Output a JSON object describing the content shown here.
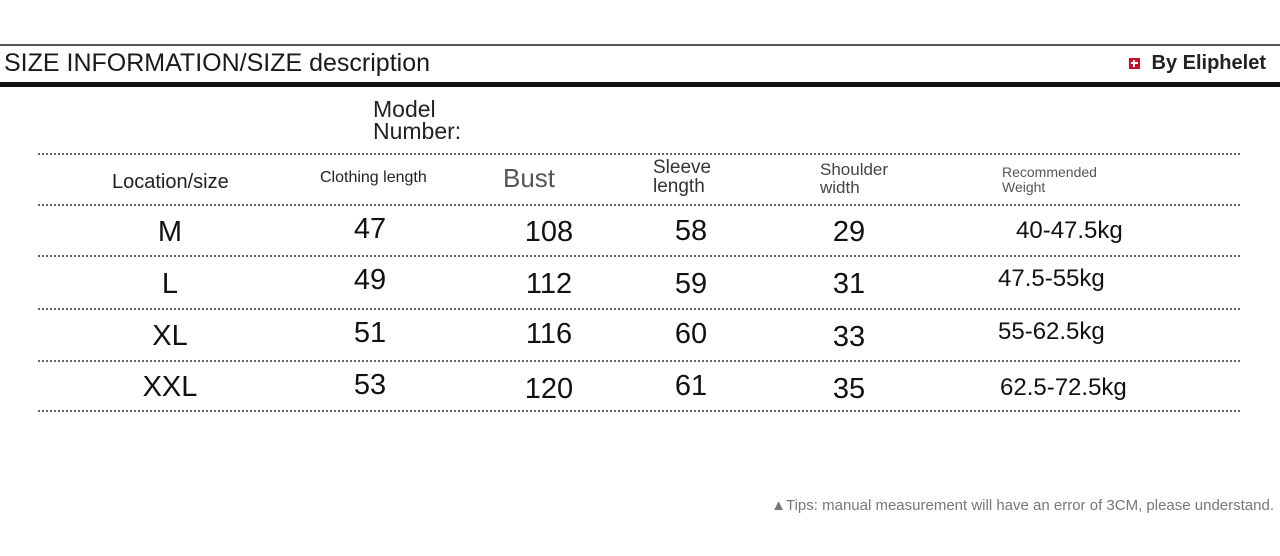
{
  "header": {
    "title": "SIZE INFORMATION/SIZE description",
    "brand": "By Eliphelet",
    "brand_icon": "red-cross-square-icon",
    "brand_color": "#c8102e"
  },
  "model_number_label": "Model Number:",
  "table": {
    "columns": [
      "Location/size",
      "Clothing length",
      "Bust",
      "Sleeve length",
      "Shoulder width",
      "Recommended Weight"
    ],
    "rows": [
      {
        "size": "M",
        "clothing_length": "47",
        "bust": "108",
        "sleeve_length": "58",
        "shoulder_width": "29",
        "weight": "40-47.5kg"
      },
      {
        "size": "L",
        "clothing_length": "49",
        "bust": "112",
        "sleeve_length": "59",
        "shoulder_width": "31",
        "weight": "47.5-55kg"
      },
      {
        "size": "XL",
        "clothing_length": "51",
        "bust": "116",
        "sleeve_length": "60",
        "shoulder_width": "33",
        "weight": "55-62.5kg"
      },
      {
        "size": "XXL",
        "clothing_length": "53",
        "bust": "120",
        "sleeve_length": "61",
        "shoulder_width": "35",
        "weight": "62.5-72.5kg"
      }
    ]
  },
  "tip": "▲Tips: manual measurement will have an error of 3CM, please understand."
}
